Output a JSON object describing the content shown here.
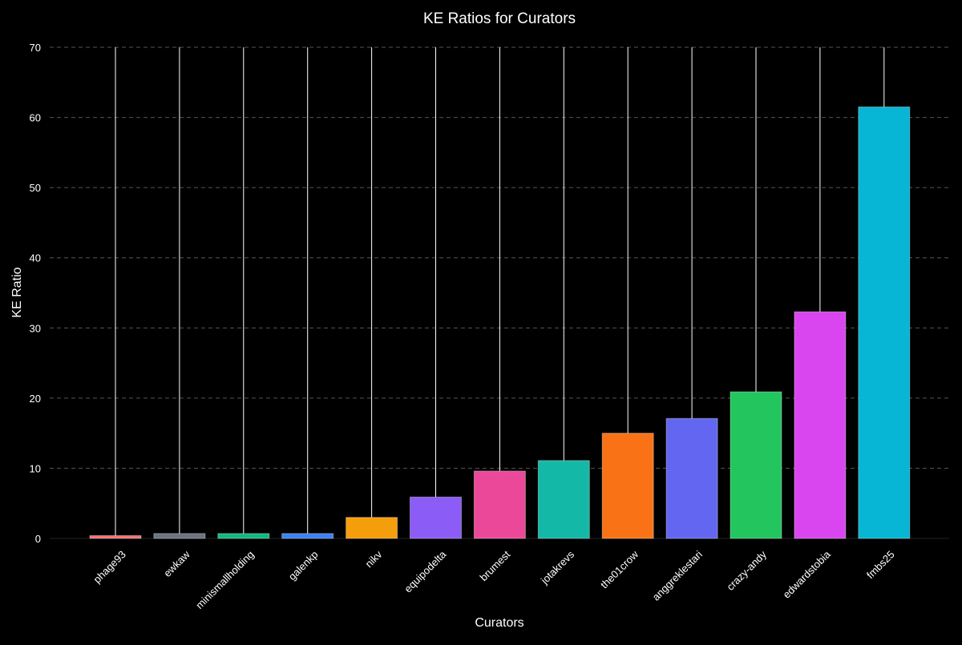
{
  "chart_data": {
    "type": "bar",
    "title": "KE Ratios for Curators",
    "xlabel": "Curators",
    "ylabel": "KE Ratio",
    "ylim": [
      0,
      70
    ],
    "yticks": [
      0,
      10,
      20,
      30,
      40,
      50,
      60,
      70
    ],
    "grid": true,
    "categories": [
      "phage93",
      "ewkaw",
      "minismallholding",
      "galenkp",
      "nikv",
      "equipodelta",
      "brumest",
      "jotakrevs",
      "the01crow",
      "anggreklestari",
      "crazy-andy",
      "edwardstobia",
      "fmbs25"
    ],
    "values": [
      0.4,
      0.7,
      0.7,
      0.7,
      3.0,
      5.9,
      9.6,
      11.1,
      15.0,
      17.1,
      20.9,
      32.3,
      61.5
    ],
    "error_upper": [
      70,
      70,
      70,
      70,
      70,
      70,
      70,
      70,
      70,
      70,
      70,
      70,
      70
    ],
    "colors": [
      "#f87171",
      "#6b7280",
      "#10b981",
      "#3b82f6",
      "#f59e0b",
      "#8b5cf6",
      "#ec4899",
      "#14b8a6",
      "#f97316",
      "#6366f1",
      "#22c55e",
      "#d946ef",
      "#06b6d4"
    ],
    "background": "#000000",
    "text_color": "#ffffff",
    "grid_color": "#555555"
  }
}
